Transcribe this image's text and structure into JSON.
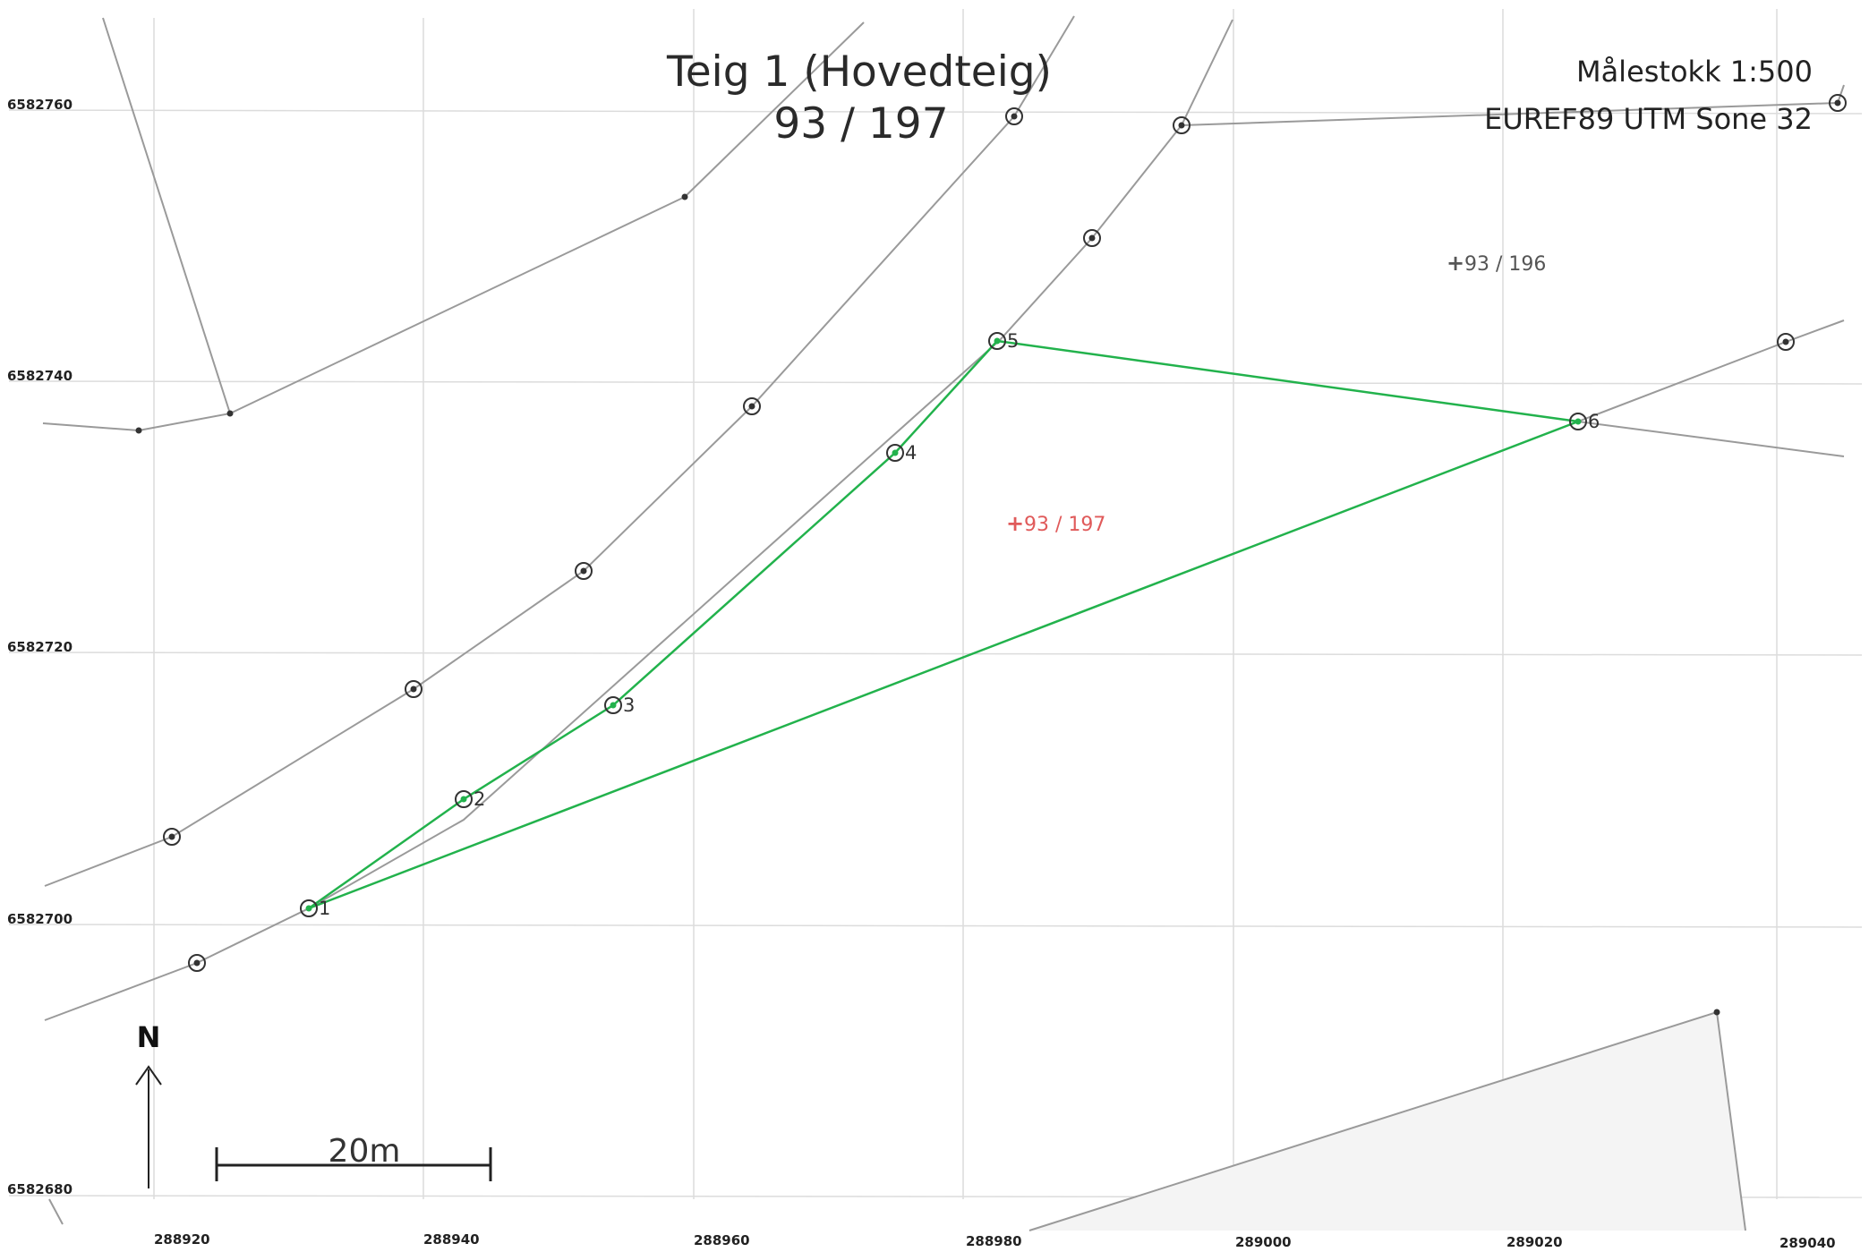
{
  "title": {
    "line1": "Teig 1 (Hovedteig)",
    "line2": "93 / 197"
  },
  "scale_text": "Målestokk 1:500",
  "crs_text": "EUREF89 UTM Sone 32",
  "north_label": "N",
  "scalebar_label": "20m",
  "grid": {
    "easting_labels": [
      "288920",
      "288940",
      "288960",
      "288980",
      "289000",
      "289020",
      "289040"
    ],
    "northing_labels": [
      "6582760",
      "6582740",
      "6582720",
      "6582700",
      "6582680"
    ]
  },
  "parcels": [
    {
      "label": "93 / 196",
      "color": "#555555"
    },
    {
      "label": "93 / 197",
      "color": "#e05a5a"
    }
  ],
  "boundary_points": [
    "1",
    "2",
    "3",
    "4",
    "5",
    "6"
  ],
  "colors": {
    "boundary": "#22b24c",
    "neighbor_lines": "#9a9a9a",
    "grid": "#d9d9d9"
  }
}
